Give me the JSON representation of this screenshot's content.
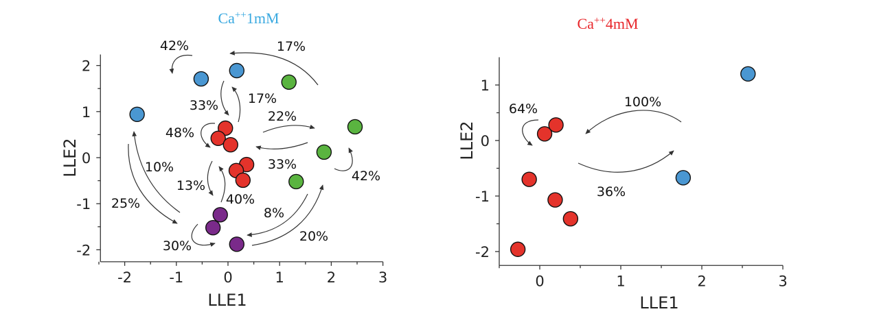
{
  "chart_data": [
    {
      "type": "scatter",
      "title": "Ca++1mM",
      "title_base": "Ca",
      "title_sup": "++",
      "title_rest": "1mM",
      "title_color": "#3aa9e0",
      "xlabel": "LLE1",
      "ylabel": "LLE2",
      "xlim": [
        -2.47,
        3.0
      ],
      "ylim": [
        -2.26,
        2.24
      ],
      "xticks": [
        -2,
        -1,
        0,
        1,
        2,
        3
      ],
      "yticks": [
        -2,
        -1,
        0,
        1,
        2
      ],
      "grid": false,
      "series": [
        {
          "name": "blue",
          "color": "#4a97d2",
          "points": [
            [
              -0.52,
              1.71
            ],
            [
              0.17,
              1.89
            ],
            [
              -1.76,
              0.94
            ]
          ]
        },
        {
          "name": "green",
          "color": "#5ab440",
          "points": [
            [
              1.18,
              1.64
            ],
            [
              2.46,
              0.67
            ],
            [
              1.86,
              0.12
            ],
            [
              1.32,
              -0.52
            ]
          ]
        },
        {
          "name": "red",
          "color": "#e4332b",
          "points": [
            [
              -0.05,
              0.64
            ],
            [
              -0.19,
              0.42
            ],
            [
              0.05,
              0.28
            ],
            [
              0.36,
              -0.15
            ],
            [
              0.16,
              -0.28
            ],
            [
              0.29,
              -0.49
            ]
          ]
        },
        {
          "name": "purple",
          "color": "#7a2a8a",
          "points": [
            [
              -0.15,
              -1.24
            ],
            [
              -0.29,
              -1.52
            ],
            [
              0.17,
              -1.88
            ]
          ]
        }
      ],
      "annotations": [
        "42%",
        "17%",
        "33%",
        "17%",
        "22%",
        "48%",
        "33%",
        "42%",
        "10%",
        "25%",
        "13%",
        "40%",
        "8%",
        "20%",
        "30%"
      ]
    },
    {
      "type": "scatter",
      "title": "Ca++4mM",
      "title_base": "Ca",
      "title_sup": "++",
      "title_rest": "4mM",
      "title_color": "#e8262a",
      "xlabel": "LLE1",
      "ylabel": "LLE2",
      "xlim": [
        -0.5,
        3.0
      ],
      "ylim": [
        -2.25,
        1.5
      ],
      "xticks": [
        0,
        1,
        2,
        3
      ],
      "yticks": [
        -2,
        -1,
        0,
        1
      ],
      "grid": false,
      "series": [
        {
          "name": "red",
          "color": "#e4332b",
          "points": [
            [
              0.06,
              0.12
            ],
            [
              0.2,
              0.28
            ],
            [
              -0.13,
              -0.7
            ],
            [
              0.19,
              -1.07
            ],
            [
              0.38,
              -1.41
            ],
            [
              -0.27,
              -1.96
            ]
          ]
        },
        {
          "name": "blue",
          "color": "#4a97d2",
          "points": [
            [
              2.57,
              1.2
            ],
            [
              1.77,
              -0.67
            ]
          ]
        }
      ],
      "annotations": [
        "64%",
        "100%",
        "36%"
      ]
    }
  ]
}
